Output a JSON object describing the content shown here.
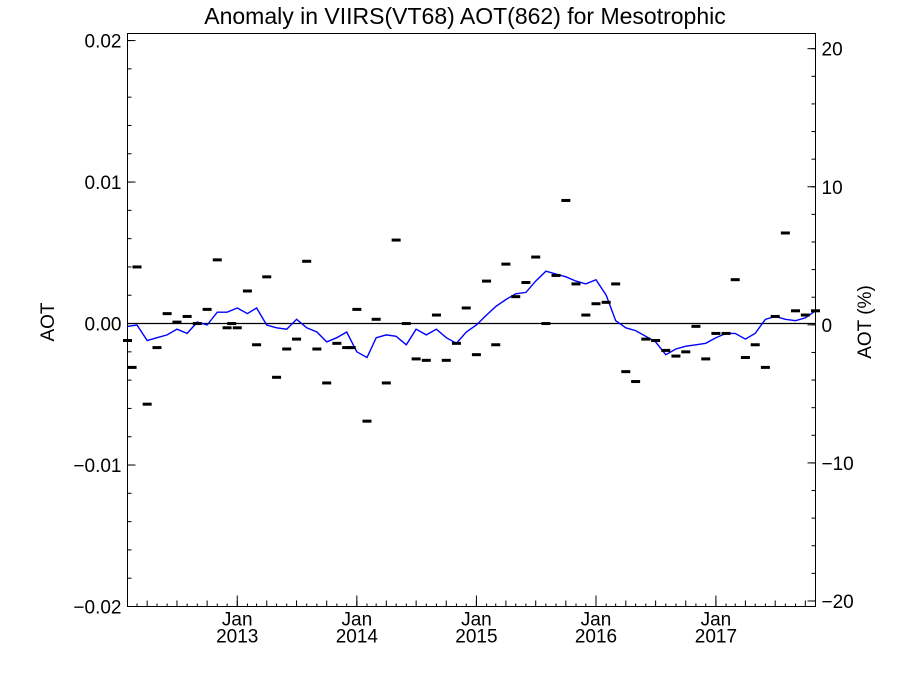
{
  "chart_data": {
    "type": "scatter",
    "title": "Anomaly in VIIRS(VT68) AOT(862) for Mesotrophic",
    "ylabel": "AOT",
    "y2label": "AOT (%)",
    "ylim": [
      -0.02,
      0.0205
    ],
    "y2lim": [
      -20.4,
      21.1
    ],
    "xlim": [
      "2012-02-01",
      "2017-11-01"
    ],
    "grid": false,
    "zero_line": true,
    "y_ticks": [
      {
        "value": 0.02,
        "label": "0.02"
      },
      {
        "value": 0.01,
        "label": "0.01"
      },
      {
        "value": 0.0,
        "label": "0.00"
      },
      {
        "value": -0.01,
        "label": "−0.01"
      },
      {
        "value": -0.02,
        "label": "−0.02"
      }
    ],
    "y2_ticks": [
      {
        "value": 20,
        "label": "20"
      },
      {
        "value": 10,
        "label": "10"
      },
      {
        "value": 0,
        "label": "0"
      },
      {
        "value": -10,
        "label": "−10"
      },
      {
        "value": -20,
        "label": "−20"
      }
    ],
    "x_ticks": [
      {
        "date": "2013-01-01",
        "month": "Jan",
        "year": "2013"
      },
      {
        "date": "2014-01-01",
        "month": "Jan",
        "year": "2014"
      },
      {
        "date": "2015-01-01",
        "month": "Jan",
        "year": "2015"
      },
      {
        "date": "2016-01-01",
        "month": "Jan",
        "year": "2016"
      },
      {
        "date": "2017-01-01",
        "month": "Jan",
        "year": "2017"
      }
    ],
    "series": [
      {
        "style": "markers",
        "color": "#000000",
        "x": [
          "2012-02-01",
          "2012-02-15",
          "2012-03-01",
          "2012-04-01",
          "2012-05-01",
          "2012-06-01",
          "2012-07-01",
          "2012-08-01",
          "2012-09-01",
          "2012-10-01",
          "2012-11-01",
          "2012-12-01",
          "2012-12-15",
          "2013-01-01",
          "2013-02-01",
          "2013-03-01",
          "2013-04-01",
          "2013-05-01",
          "2013-06-01",
          "2013-07-01",
          "2013-08-01",
          "2013-09-01",
          "2013-10-01",
          "2013-11-01",
          "2013-12-01",
          "2013-12-15",
          "2014-01-01",
          "2014-02-01",
          "2014-03-01",
          "2014-04-01",
          "2014-05-01",
          "2014-06-01",
          "2014-07-01",
          "2014-08-01",
          "2014-09-01",
          "2014-10-01",
          "2014-11-01",
          "2014-12-01",
          "2015-01-01",
          "2015-02-01",
          "2015-03-01",
          "2015-04-01",
          "2015-05-01",
          "2015-06-01",
          "2015-07-01",
          "2015-08-01",
          "2015-09-01",
          "2015-10-01",
          "2015-11-01",
          "2015-12-01",
          "2016-01-01",
          "2016-02-01",
          "2016-03-01",
          "2016-04-01",
          "2016-05-01",
          "2016-06-01",
          "2016-07-01",
          "2016-08-01",
          "2016-09-01",
          "2016-10-01",
          "2016-11-01",
          "2016-12-01",
          "2017-01-01",
          "2017-02-01",
          "2017-03-01",
          "2017-04-01",
          "2017-05-01",
          "2017-06-01",
          "2017-07-01",
          "2017-08-01",
          "2017-09-01",
          "2017-10-01",
          "2017-11-01"
        ],
        "y": [
          -0.0012,
          -0.0031,
          0.004,
          -0.0057,
          -0.0017,
          0.0007,
          0.0001,
          0.0005,
          0.0,
          0.001,
          0.0045,
          -0.0003,
          0.0,
          -0.0003,
          0.0023,
          -0.0015,
          0.0033,
          -0.0038,
          -0.0018,
          -0.0011,
          0.0044,
          -0.0018,
          -0.0042,
          -0.0014,
          -0.0017,
          -0.0017,
          0.001,
          -0.0069,
          0.0003,
          -0.0042,
          0.0059,
          0.0,
          -0.0025,
          -0.0026,
          0.0006,
          -0.0026,
          -0.0014,
          0.0011,
          -0.0022,
          0.003,
          -0.0015,
          0.0042,
          0.0019,
          0.0029,
          0.0047,
          0.0,
          0.0034,
          0.0087,
          0.0028,
          0.0006,
          0.0014,
          0.0015,
          0.0028,
          -0.0034,
          -0.0041,
          -0.0011,
          -0.0012,
          -0.0019,
          -0.0023,
          -0.002,
          -0.0002,
          -0.0025,
          -0.0007,
          -0.0007,
          0.0031,
          -0.0024,
          -0.0015,
          -0.0031,
          0.0005,
          0.0064,
          0.0009,
          0.0006,
          0.0009
        ]
      },
      {
        "style": "line",
        "color": "#0000ff",
        "x": [
          "2012-02-01",
          "2012-03-01",
          "2012-04-01",
          "2012-05-01",
          "2012-06-01",
          "2012-07-01",
          "2012-08-01",
          "2012-09-01",
          "2012-10-01",
          "2012-11-01",
          "2012-12-01",
          "2013-01-01",
          "2013-02-01",
          "2013-03-01",
          "2013-04-01",
          "2013-05-01",
          "2013-06-01",
          "2013-07-01",
          "2013-08-01",
          "2013-09-01",
          "2013-10-01",
          "2013-11-01",
          "2013-12-01",
          "2014-01-01",
          "2014-02-01",
          "2014-03-01",
          "2014-04-01",
          "2014-05-01",
          "2014-06-01",
          "2014-07-01",
          "2014-08-01",
          "2014-09-01",
          "2014-10-01",
          "2014-11-01",
          "2014-12-01",
          "2015-01-01",
          "2015-02-01",
          "2015-03-01",
          "2015-04-01",
          "2015-05-01",
          "2015-06-01",
          "2015-07-01",
          "2015-08-01",
          "2015-09-01",
          "2015-10-01",
          "2015-11-01",
          "2015-12-01",
          "2016-01-01",
          "2016-02-01",
          "2016-03-01",
          "2016-04-01",
          "2016-05-01",
          "2016-06-01",
          "2016-07-01",
          "2016-08-01",
          "2016-09-01",
          "2016-10-01",
          "2016-11-01",
          "2016-12-01",
          "2017-01-01",
          "2017-02-01",
          "2017-03-01",
          "2017-04-01",
          "2017-05-01",
          "2017-06-01",
          "2017-07-01",
          "2017-08-01",
          "2017-09-01",
          "2017-10-01",
          "2017-11-01"
        ],
        "y": [
          -0.0002,
          -0.0001,
          -0.0012,
          -0.001,
          -0.0008,
          -0.0004,
          -0.0007,
          0.0001,
          -0.0001,
          0.0008,
          0.0008,
          0.0011,
          0.0007,
          0.0011,
          -0.0001,
          -0.0003,
          -0.0004,
          0.0003,
          -0.0003,
          -0.0006,
          -0.0013,
          -0.001,
          -0.0006,
          -0.002,
          -0.0024,
          -0.001,
          -0.0008,
          -0.0009,
          -0.0015,
          -0.0004,
          -0.0008,
          -0.0004,
          -0.001,
          -0.0014,
          -0.0006,
          -0.0001,
          0.0006,
          0.0012,
          0.0017,
          0.0021,
          0.0022,
          0.003,
          0.0037,
          0.0035,
          0.0033,
          0.003,
          0.0028,
          0.0031,
          0.002,
          0.0002,
          -0.0003,
          -0.0005,
          -0.0009,
          -0.0013,
          -0.0022,
          -0.0018,
          -0.0016,
          -0.0015,
          -0.0014,
          -0.001,
          -0.0007,
          -0.0007,
          -0.0011,
          -0.0007,
          0.0003,
          0.0005,
          0.0003,
          0.0002,
          0.0004,
          0.0009
        ]
      }
    ]
  }
}
